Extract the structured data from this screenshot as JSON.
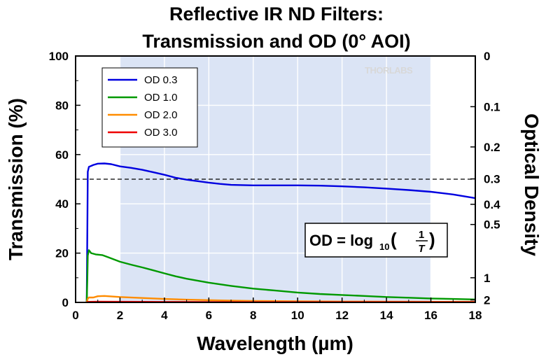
{
  "chart_data": {
    "type": "line",
    "title_line1": "Reflective IR ND Filters:",
    "title_line2": "Transmission and OD (0° AOI)",
    "xlabel": "Wavelength (µm)",
    "ylabel": "Transmission (%)",
    "y2label": "Optical Density",
    "xlim": [
      0,
      18
    ],
    "ylim": [
      0,
      100
    ],
    "x_ticks": [
      0,
      2,
      4,
      6,
      8,
      10,
      12,
      14,
      16,
      18
    ],
    "y_ticks": [
      0,
      20,
      40,
      60,
      80,
      100
    ],
    "y2_ticks": [
      {
        "label": "0",
        "value": 0
      },
      {
        "label": "0.1",
        "value": 0.1
      },
      {
        "label": "0.2",
        "value": 0.2
      },
      {
        "label": "0.3",
        "value": 0.3
      },
      {
        "label": "0.4",
        "value": 0.4
      },
      {
        "label": "0.5",
        "value": 0.5
      },
      {
        "label": "1",
        "value": 1
      },
      {
        "label": "2",
        "value": 2
      }
    ],
    "grid": true,
    "shaded_region_x": [
      2,
      16
    ],
    "shaded_color": "#dbe4f5",
    "reference_line_y": 50,
    "legend_position": "top-left",
    "watermark": "THORLABS",
    "formula": {
      "lhs": "OD = log",
      "sub": "10",
      "open": "(",
      "num": "1",
      "den": "T",
      "close": ")"
    },
    "series": [
      {
        "name": "OD 0.3",
        "color": "#0000e0",
        "points": [
          [
            0.5,
            0
          ],
          [
            0.53,
            30
          ],
          [
            0.55,
            53
          ],
          [
            0.6,
            55
          ],
          [
            0.8,
            55.8
          ],
          [
            1,
            56.3
          ],
          [
            1.3,
            56.4
          ],
          [
            1.6,
            56.1
          ],
          [
            2,
            55.2
          ],
          [
            2.5,
            54.6
          ],
          [
            3,
            53.8
          ],
          [
            3.5,
            52.8
          ],
          [
            4,
            51.8
          ],
          [
            4.5,
            50.6
          ],
          [
            5,
            49.8
          ],
          [
            5.5,
            49.2
          ],
          [
            6,
            48.6
          ],
          [
            6.5,
            48.1
          ],
          [
            7,
            47.7
          ],
          [
            8,
            47.5
          ],
          [
            9,
            47.5
          ],
          [
            10,
            47.5
          ],
          [
            11,
            47.4
          ],
          [
            12,
            47.1
          ],
          [
            13,
            46.7
          ],
          [
            14,
            46.2
          ],
          [
            15,
            45.6
          ],
          [
            16,
            44.9
          ],
          [
            17,
            43.8
          ],
          [
            18,
            42.3
          ]
        ]
      },
      {
        "name": "OD 1.0",
        "color": "#009900",
        "points": [
          [
            0.5,
            0
          ],
          [
            0.53,
            10
          ],
          [
            0.55,
            19
          ],
          [
            0.6,
            21.2
          ],
          [
            0.7,
            20
          ],
          [
            0.9,
            19.5
          ],
          [
            1.2,
            19.2
          ],
          [
            1.5,
            18.2
          ],
          [
            2,
            16.5
          ],
          [
            2.5,
            15.3
          ],
          [
            3,
            14.2
          ],
          [
            3.5,
            13
          ],
          [
            4,
            11.8
          ],
          [
            4.5,
            10.6
          ],
          [
            5,
            9.6
          ],
          [
            6,
            8
          ],
          [
            7,
            6.7
          ],
          [
            8,
            5.6
          ],
          [
            9,
            4.8
          ],
          [
            10,
            4
          ],
          [
            11,
            3.4
          ],
          [
            12,
            3
          ],
          [
            13,
            2.6
          ],
          [
            14,
            2.2
          ],
          [
            15,
            1.9
          ],
          [
            16,
            1.6
          ],
          [
            17,
            1.4
          ],
          [
            18,
            1.2
          ]
        ]
      },
      {
        "name": "OD 2.0",
        "color": "#ff8c00",
        "points": [
          [
            0.5,
            0
          ],
          [
            0.55,
            1.5
          ],
          [
            0.6,
            2
          ],
          [
            0.8,
            2
          ],
          [
            1,
            2.5
          ],
          [
            1.3,
            2.6
          ],
          [
            2,
            2.2
          ],
          [
            3,
            1.8
          ],
          [
            4,
            1.4
          ],
          [
            5,
            1.1
          ],
          [
            6,
            0.9
          ],
          [
            7,
            0.7
          ],
          [
            8,
            0.6
          ],
          [
            10,
            0.45
          ],
          [
            12,
            0.35
          ],
          [
            14,
            0.3
          ],
          [
            16,
            0.25
          ],
          [
            18,
            0.25
          ]
        ]
      },
      {
        "name": "OD 3.0",
        "color": "#ee0000",
        "points": [
          [
            0.5,
            0
          ],
          [
            0.55,
            0.2
          ],
          [
            1,
            0.3
          ],
          [
            2,
            0.25
          ],
          [
            4,
            0.2
          ],
          [
            6,
            0.15
          ],
          [
            8,
            0.1
          ],
          [
            10,
            0.1
          ],
          [
            12,
            0.1
          ],
          [
            14,
            0.1
          ],
          [
            16,
            0.1
          ],
          [
            18,
            0.1
          ]
        ]
      }
    ]
  }
}
